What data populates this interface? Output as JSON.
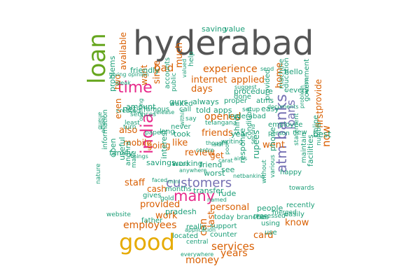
{
  "palette": {
    "dark_gray": "#555555",
    "green": "#66a61e",
    "mustard": "#e6ab02",
    "magenta": "#e7298a",
    "purple": "#7570b3",
    "orange": "#d95f02",
    "teal": "#1b9e77"
  },
  "words": [
    {
      "text": "hyderabad",
      "color": "dark_gray"
    },
    {
      "text": "loan",
      "color": "green"
    },
    {
      "text": "good",
      "color": "mustard"
    },
    {
      "text": "time",
      "color": "magenta"
    },
    {
      "text": "india",
      "color": "magenta"
    },
    {
      "text": "many",
      "color": "magenta"
    },
    {
      "text": "customers",
      "color": "purple"
    },
    {
      "text": "banks",
      "color": "purple"
    },
    {
      "text": "atm",
      "color": "purple"
    },
    {
      "text": "loans",
      "color": "purple"
    },
    {
      "text": "bad",
      "color": "orange"
    },
    {
      "text": "experience",
      "color": "orange"
    },
    {
      "text": "internet",
      "color": "orange"
    },
    {
      "text": "applied",
      "color": "orange"
    },
    {
      "text": "days",
      "color": "orange"
    },
    {
      "text": "since",
      "color": "orange"
    },
    {
      "text": "want",
      "color": "orange"
    },
    {
      "text": "also",
      "color": "orange"
    },
    {
      "text": "like",
      "color": "orange"
    },
    {
      "text": "opened",
      "color": "orange"
    },
    {
      "text": "friends",
      "color": "orange"
    },
    {
      "text": "mobile",
      "color": "orange"
    },
    {
      "text": "going",
      "color": "orange"
    },
    {
      "text": "review",
      "color": "orange"
    },
    {
      "text": "staff",
      "color": "orange"
    },
    {
      "text": "provided",
      "color": "orange"
    },
    {
      "text": "employees",
      "color": "orange"
    },
    {
      "text": "work",
      "color": "orange"
    },
    {
      "text": "personal",
      "color": "orange"
    },
    {
      "text": "services",
      "color": "orange"
    },
    {
      "text": "years",
      "color": "orange"
    },
    {
      "text": "money",
      "color": "orange"
    },
    {
      "text": "card",
      "color": "orange"
    },
    {
      "text": "know",
      "color": "orange"
    },
    {
      "text": "went",
      "color": "orange"
    },
    {
      "text": "home",
      "color": "orange"
    },
    {
      "text": "now",
      "color": "orange"
    },
    {
      "text": "first",
      "color": "orange"
    },
    {
      "text": "provide",
      "color": "orange"
    },
    {
      "text": "available",
      "color": "orange"
    },
    {
      "text": "much",
      "color": "orange"
    },
    {
      "text": "two",
      "color": "orange"
    },
    {
      "text": "can",
      "color": "orange"
    },
    {
      "text": "last",
      "color": "orange"
    },
    {
      "text": "cash",
      "color": "orange"
    },
    {
      "text": "even",
      "color": "orange"
    },
    {
      "text": "get",
      "color": "orange"
    },
    {
      "text": "saving",
      "color": "teal"
    },
    {
      "text": "value",
      "color": "teal"
    },
    {
      "text": "friendly",
      "color": "teal"
    },
    {
      "text": "amount",
      "color": "teal"
    },
    {
      "text": "guys",
      "color": "teal"
    },
    {
      "text": "always",
      "color": "teal"
    },
    {
      "text": "told",
      "color": "teal"
    },
    {
      "text": "apps",
      "color": "teal"
    },
    {
      "text": "procedure",
      "color": "teal"
    },
    {
      "text": "atms",
      "color": "teal"
    },
    {
      "text": "easy",
      "color": "teal"
    },
    {
      "text": "hello",
      "color": "teal"
    },
    {
      "text": "every",
      "color": "teal"
    },
    {
      "text": "government",
      "color": "teal"
    },
    {
      "text": "employee",
      "color": "teal"
    },
    {
      "text": "new",
      "color": "teal"
    },
    {
      "text": "best",
      "color": "teal"
    },
    {
      "text": "online",
      "color": "teal"
    },
    {
      "text": "year",
      "color": "teal"
    },
    {
      "text": "never",
      "color": "teal"
    },
    {
      "text": "long",
      "color": "teal"
    },
    {
      "text": "took",
      "color": "teal"
    },
    {
      "text": "shirdi",
      "color": "teal"
    },
    {
      "text": "phone",
      "color": "teal"
    },
    {
      "text": "rupees",
      "color": "teal"
    },
    {
      "text": "response",
      "color": "teal"
    },
    {
      "text": "condition",
      "color": "teal"
    },
    {
      "text": "hyderabad",
      "color": "teal"
    },
    {
      "text": "telangana",
      "color": "teal"
    },
    {
      "text": "proper",
      "color": "teal"
    },
    {
      "text": "done",
      "color": "teal"
    },
    {
      "text": "suggest",
      "color": "teal"
    },
    {
      "text": "setup",
      "color": "teal"
    },
    {
      "text": "family",
      "color": "teal"
    },
    {
      "text": "information",
      "color": "teal"
    },
    {
      "text": "open",
      "color": "teal"
    },
    {
      "text": "useful",
      "color": "teal"
    },
    {
      "text": "andhra",
      "color": "teal"
    },
    {
      "text": "savings",
      "color": "teal"
    },
    {
      "text": "interest",
      "color": "teal"
    },
    {
      "text": "working",
      "color": "teal"
    },
    {
      "text": "friend",
      "color": "teal"
    },
    {
      "text": "see",
      "color": "teal"
    },
    {
      "text": "worst",
      "color": "teal"
    },
    {
      "text": "months",
      "color": "teal"
    },
    {
      "text": "transfer",
      "color": "teal"
    },
    {
      "text": "rude",
      "color": "teal"
    },
    {
      "text": "pradesh",
      "color": "teal"
    },
    {
      "text": "today",
      "color": "teal"
    },
    {
      "text": "support",
      "color": "teal"
    },
    {
      "text": "branches",
      "color": "teal"
    },
    {
      "text": "car",
      "color": "teal"
    },
    {
      "text": "using",
      "color": "teal"
    },
    {
      "text": "easily",
      "color": "teal"
    },
    {
      "text": "people",
      "color": "teal"
    },
    {
      "text": "recently",
      "color": "teal"
    },
    {
      "text": "website",
      "color": "teal"
    },
    {
      "text": "father",
      "color": "teal"
    },
    {
      "text": "gives",
      "color": "teal"
    },
    {
      "text": "gold",
      "color": "teal"
    },
    {
      "text": "located",
      "color": "teal"
    },
    {
      "text": "counter",
      "color": "teal"
    },
    {
      "text": "use",
      "color": "teal"
    },
    {
      "text": "really",
      "color": "teal"
    },
    {
      "text": "problems",
      "color": "teal"
    },
    {
      "text": "net",
      "color": "teal"
    },
    {
      "text": "famous",
      "color": "teal"
    },
    {
      "text": "accounts",
      "color": "teal"
    },
    {
      "text": "valued",
      "color": "teal"
    },
    {
      "text": "help",
      "color": "teal"
    },
    {
      "text": "public",
      "color": "teal"
    },
    {
      "text": "waited",
      "color": "teal"
    },
    {
      "text": "call",
      "color": "teal"
    },
    {
      "text": "say",
      "color": "teal"
    },
    {
      "text": "release",
      "color": "teal"
    },
    {
      "text": "paper",
      "color": "teal"
    },
    {
      "text": "turn",
      "color": "teal"
    },
    {
      "text": "opening",
      "color": "teal"
    },
    {
      "text": "least",
      "color": "teal"
    },
    {
      "text": "created",
      "color": "teal"
    },
    {
      "text": "services",
      "color": "teal"
    },
    {
      "text": "speak",
      "color": "teal"
    },
    {
      "text": "giving opinion",
      "color": "teal"
    },
    {
      "text": "education",
      "color": "teal"
    },
    {
      "text": "machine",
      "color": "teal"
    },
    {
      "text": "send",
      "color": "teal"
    },
    {
      "text": "documents",
      "color": "teal"
    },
    {
      "text": "second",
      "color": "teal"
    },
    {
      "text": "provided",
      "color": "teal"
    },
    {
      "text": "person",
      "color": "teal"
    },
    {
      "text": "happy",
      "color": "teal"
    },
    {
      "text": "processed",
      "color": "teal"
    },
    {
      "text": "merged",
      "color": "teal"
    },
    {
      "text": "towards",
      "color": "teal"
    },
    {
      "text": "maintain",
      "color": "teal"
    },
    {
      "text": "facilities",
      "color": "teal"
    },
    {
      "text": "number",
      "color": "teal"
    },
    {
      "text": "statement",
      "color": "teal"
    },
    {
      "text": "problem",
      "color": "teal"
    },
    {
      "text": "netbanking",
      "color": "teal"
    },
    {
      "text": "various",
      "color": "teal"
    },
    {
      "text": "without",
      "color": "teal"
    },
    {
      "text": "carat",
      "color": "teal"
    },
    {
      "text": "aims",
      "color": "teal"
    },
    {
      "text": "poor",
      "color": "teal"
    },
    {
      "text": "lakh",
      "color": "teal"
    },
    {
      "text": "writing",
      "color": "teal"
    },
    {
      "text": "centre",
      "color": "teal"
    },
    {
      "text": "thought",
      "color": "teal"
    },
    {
      "text": "named",
      "color": "teal"
    },
    {
      "text": "application",
      "color": "teal"
    },
    {
      "text": "central",
      "color": "teal"
    },
    {
      "text": "everywhere",
      "color": "teal"
    },
    {
      "text": "anywhere",
      "color": "teal"
    },
    {
      "text": "asked",
      "color": "teal"
    },
    {
      "text": "faced",
      "color": "teal"
    },
    {
      "text": "mini",
      "color": "teal"
    },
    {
      "text": "things",
      "color": "teal"
    },
    {
      "text": "make",
      "color": "teal"
    },
    {
      "text": "nature",
      "color": "teal"
    },
    {
      "text": "queue",
      "color": "teal"
    },
    {
      "text": "officer",
      "color": "teal"
    },
    {
      "text": "arrive",
      "color": "teal"
    },
    {
      "text": "within",
      "color": "teal"
    },
    {
      "text": "dont",
      "color": "teal"
    },
    {
      "text": "slow",
      "color": "teal"
    }
  ]
}
